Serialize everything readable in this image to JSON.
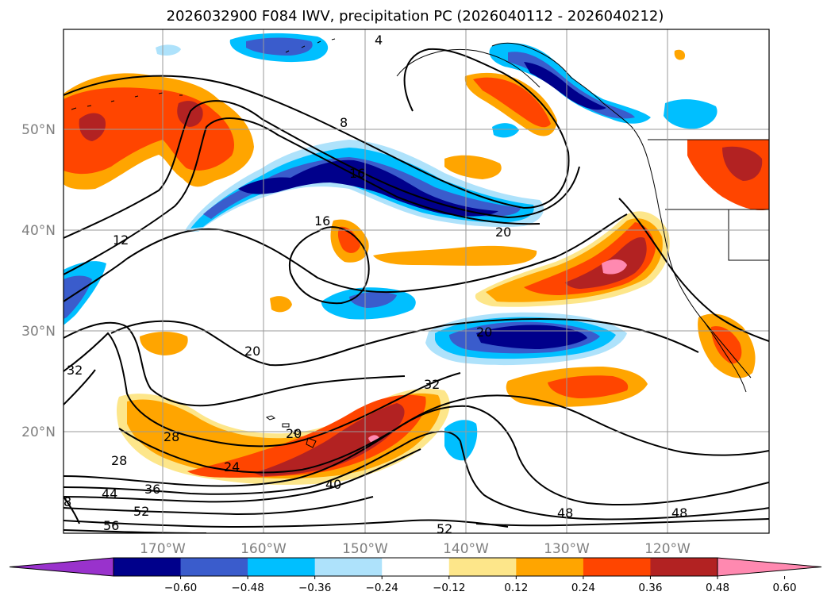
{
  "title": "2026032900 F084 IWV, precipitation PC (2026040112 - 2026040212)",
  "lat_labels": [
    "50°N",
    "40°N",
    "30°N",
    "20°N"
  ],
  "lon_labels": [
    "170°W",
    "160°W",
    "150°W",
    "140°W",
    "130°W",
    "120°W"
  ],
  "colorbar": {
    "ticks": [
      "−0.60",
      "−0.48",
      "−0.36",
      "−0.24",
      "−0.12",
      "0.12",
      "0.24",
      "0.36",
      "0.48",
      "0.60"
    ],
    "colors": [
      "#9932cc",
      "#00008b",
      "#3a5ccc",
      "#00bfff",
      "#aee2fb",
      "#ffffff",
      "#fde68a",
      "#ffa500",
      "#ff4500",
      "#b22222",
      "#ff89b0"
    ]
  },
  "contour_labels": [
    "4",
    "8",
    "12",
    "16",
    "16",
    "20",
    "20",
    "20",
    "20",
    "24",
    "28",
    "28",
    "32",
    "32",
    "36",
    "40",
    "44",
    "48",
    "48",
    "52",
    "52",
    "56",
    "8"
  ],
  "colors": {
    "strong_negative": "#00008b",
    "negative": "#3a5ccc",
    "moderate_negative": "#00bfff",
    "weak_negative": "#aee2fb",
    "weak_positive": "#fde68a",
    "moderate_positive": "#ffa500",
    "positive": "#ff4500",
    "strong_positive": "#b22222",
    "extreme_positive": "#ff89b0"
  }
}
